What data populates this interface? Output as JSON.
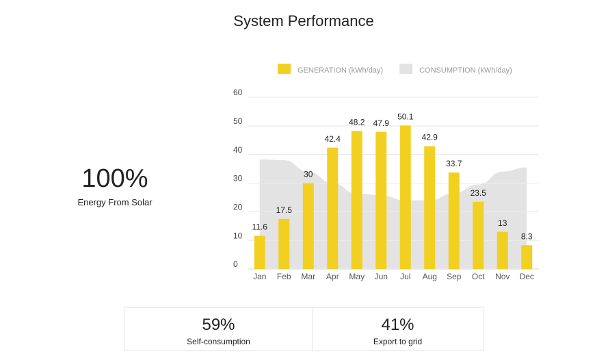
{
  "chart_data": {
    "type": "bar",
    "title": "System Performance",
    "categories": [
      "Jan",
      "Feb",
      "Mar",
      "Apr",
      "May",
      "Jun",
      "Jul",
      "Aug",
      "Sep",
      "Oct",
      "Nov",
      "Dec"
    ],
    "series": [
      {
        "name": "GENERATION (kWh/day)",
        "type": "bar",
        "color": "#f2d022",
        "values": [
          11.6,
          17.5,
          30,
          42.4,
          48.2,
          47.9,
          50.1,
          42.9,
          33.7,
          23.5,
          13,
          8.3
        ]
      },
      {
        "name": "CONSUMPTION (kWh/day)",
        "type": "area",
        "color": "#e3e3e3",
        "values": [
          38.3,
          38,
          34,
          30,
          26.3,
          25.8,
          24,
          24,
          26.5,
          29.5,
          34,
          35.5
        ]
      }
    ],
    "ylim": [
      0,
      60
    ],
    "yticks": [
      0,
      10,
      20,
      30,
      40,
      50,
      60
    ],
    "grid": true,
    "data_labels": true
  },
  "solar": {
    "value": "100%",
    "label": "Energy From Solar"
  },
  "stats": [
    {
      "value": "59%",
      "label": "Self-consumption"
    },
    {
      "value": "41%",
      "label": "Export to grid"
    }
  ]
}
